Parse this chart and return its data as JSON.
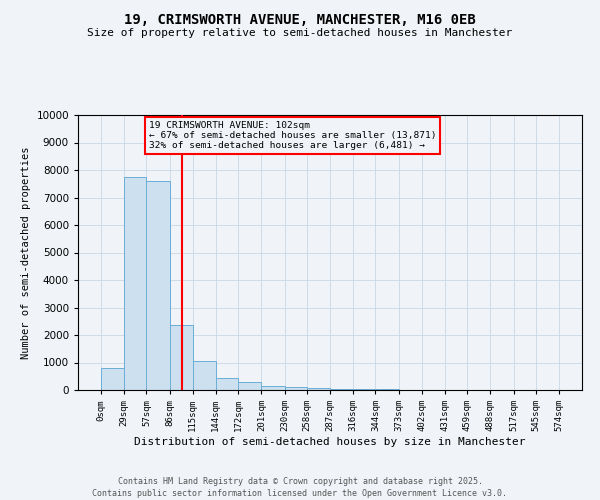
{
  "title": "19, CRIMSWORTH AVENUE, MANCHESTER, M16 0EB",
  "subtitle": "Size of property relative to semi-detached houses in Manchester",
  "xlabel": "Distribution of semi-detached houses by size in Manchester",
  "ylabel": "Number of semi-detached properties",
  "bin_edges": [
    0,
    29,
    57,
    86,
    115,
    144,
    172,
    201,
    230,
    258,
    287,
    316,
    344,
    373,
    402,
    431,
    459,
    488,
    517,
    545,
    574
  ],
  "bar_heights": [
    800,
    7750,
    7600,
    2350,
    1050,
    450,
    280,
    130,
    100,
    70,
    50,
    30,
    20,
    10,
    5,
    5,
    5,
    5,
    5,
    5
  ],
  "bar_color": "#cce0f0",
  "bar_edge_color": "#6aaed6",
  "red_line_x": 102,
  "ylim": [
    0,
    10000
  ],
  "annotation_title": "19 CRIMSWORTH AVENUE: 102sqm",
  "annotation_line1": "← 67% of semi-detached houses are smaller (13,871)",
  "annotation_line2": "32% of semi-detached houses are larger (6,481) →",
  "footer_line1": "Contains HM Land Registry data © Crown copyright and database right 2025.",
  "footer_line2": "Contains public sector information licensed under the Open Government Licence v3.0.",
  "background_color": "#f0f4f8",
  "grid_color": "#c8d8e8",
  "yticks": [
    0,
    1000,
    2000,
    3000,
    4000,
    5000,
    6000,
    7000,
    8000,
    9000,
    10000
  ]
}
